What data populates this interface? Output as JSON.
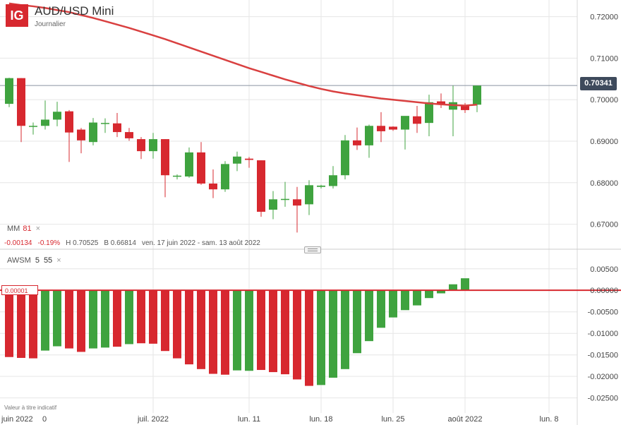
{
  "header": {
    "logo_text": "IG",
    "title": "AUD/USD Mini",
    "subtitle": "Journalier"
  },
  "price_pane": {
    "current_price_label": "0.70341",
    "indicator": {
      "name": "MM",
      "value": "81",
      "close": "×"
    },
    "stats": {
      "change": "-0.00134",
      "change_pct": "-0.19%",
      "high": "H 0.70525",
      "low": "B 0.66814",
      "range": "ven. 17 juin 2022 - sam. 13 août 2022"
    }
  },
  "osc_pane": {
    "indicator": {
      "name": "AWSM",
      "p1": "5",
      "p2": "55",
      "close": "×"
    },
    "current_value_label": "0.00001"
  },
  "disclaimer": "Valeur à titre indicatif",
  "colors": {
    "up": "#3fa33f",
    "down": "#d7282f",
    "ma": "#d94040",
    "grid": "#e6e6e6",
    "axis_text": "#444",
    "price_tag": "#3e4a5c"
  },
  "chart_data": [
    {
      "type": "candlestick",
      "title": "AUD/USD Mini",
      "ylim": [
        0.665,
        0.723
      ],
      "y_ticks": [
        "0.72000",
        "0.71000",
        "0.70000",
        "0.69000",
        "0.68000",
        "0.67000"
      ],
      "y_tick_values": [
        0.72,
        0.71,
        0.7,
        0.69,
        0.68,
        0.67
      ],
      "x_ticks": [
        "juin 2022",
        "0",
        "juil. 2022",
        "lun. 11",
        "lun. 18",
        "lun. 25",
        "août 2022",
        "lun. 8"
      ],
      "x_tick_index": [
        0,
        3,
        12,
        20,
        26,
        32,
        38,
        45
      ],
      "last_price": 0.70341,
      "candles": [
        {
          "o": 0.699,
          "h": 0.7053,
          "l": 0.6982,
          "c": 0.7052
        },
        {
          "o": 0.7052,
          "h": 0.7052,
          "l": 0.6898,
          "c": 0.6937
        },
        {
          "o": 0.6936,
          "h": 0.6945,
          "l": 0.6916,
          "c": 0.6937
        },
        {
          "o": 0.6937,
          "h": 0.6998,
          "l": 0.6928,
          "c": 0.6952
        },
        {
          "o": 0.6952,
          "h": 0.6995,
          "l": 0.6936,
          "c": 0.6971
        },
        {
          "o": 0.6972,
          "h": 0.6975,
          "l": 0.685,
          "c": 0.6921
        },
        {
          "o": 0.6928,
          "h": 0.6932,
          "l": 0.6871,
          "c": 0.6902
        },
        {
          "o": 0.6898,
          "h": 0.6956,
          "l": 0.689,
          "c": 0.6945
        },
        {
          "o": 0.6942,
          "h": 0.6955,
          "l": 0.692,
          "c": 0.6944
        },
        {
          "o": 0.6943,
          "h": 0.6968,
          "l": 0.691,
          "c": 0.6922
        },
        {
          "o": 0.6922,
          "h": 0.6932,
          "l": 0.6901,
          "c": 0.6907
        },
        {
          "o": 0.6905,
          "h": 0.691,
          "l": 0.6857,
          "c": 0.6876
        },
        {
          "o": 0.6876,
          "h": 0.692,
          "l": 0.6858,
          "c": 0.6905
        },
        {
          "o": 0.6905,
          "h": 0.6905,
          "l": 0.6765,
          "c": 0.6818
        },
        {
          "o": 0.6815,
          "h": 0.682,
          "l": 0.6808,
          "c": 0.6817
        },
        {
          "o": 0.6815,
          "h": 0.6885,
          "l": 0.6812,
          "c": 0.6873
        },
        {
          "o": 0.6873,
          "h": 0.6898,
          "l": 0.6795,
          "c": 0.6798
        },
        {
          "o": 0.6798,
          "h": 0.6832,
          "l": 0.6763,
          "c": 0.6784
        },
        {
          "o": 0.6784,
          "h": 0.6852,
          "l": 0.6778,
          "c": 0.6845
        },
        {
          "o": 0.6846,
          "h": 0.6875,
          "l": 0.6828,
          "c": 0.6863
        },
        {
          "o": 0.6858,
          "h": 0.6862,
          "l": 0.6836,
          "c": 0.6855
        },
        {
          "o": 0.6854,
          "h": 0.6854,
          "l": 0.6718,
          "c": 0.673
        },
        {
          "o": 0.6735,
          "h": 0.678,
          "l": 0.6712,
          "c": 0.676
        },
        {
          "o": 0.6759,
          "h": 0.6802,
          "l": 0.6742,
          "c": 0.6761
        },
        {
          "o": 0.676,
          "h": 0.679,
          "l": 0.668,
          "c": 0.6745
        },
        {
          "o": 0.6748,
          "h": 0.6806,
          "l": 0.6722,
          "c": 0.6794
        },
        {
          "o": 0.679,
          "h": 0.6795,
          "l": 0.6786,
          "c": 0.6793
        },
        {
          "o": 0.6792,
          "h": 0.684,
          "l": 0.6786,
          "c": 0.6818
        },
        {
          "o": 0.6818,
          "h": 0.6915,
          "l": 0.6808,
          "c": 0.6902
        },
        {
          "o": 0.6902,
          "h": 0.6933,
          "l": 0.6879,
          "c": 0.689
        },
        {
          "o": 0.689,
          "h": 0.694,
          "l": 0.686,
          "c": 0.6937
        },
        {
          "o": 0.6937,
          "h": 0.697,
          "l": 0.6898,
          "c": 0.6924
        },
        {
          "o": 0.6935,
          "h": 0.6936,
          "l": 0.6925,
          "c": 0.6928
        },
        {
          "o": 0.6928,
          "h": 0.696,
          "l": 0.688,
          "c": 0.6961
        },
        {
          "o": 0.696,
          "h": 0.6985,
          "l": 0.692,
          "c": 0.6942
        },
        {
          "o": 0.6944,
          "h": 0.7012,
          "l": 0.6912,
          "c": 0.6994
        },
        {
          "o": 0.6996,
          "h": 0.7015,
          "l": 0.698,
          "c": 0.699
        },
        {
          "o": 0.6976,
          "h": 0.7034,
          "l": 0.6912,
          "c": 0.6994
        },
        {
          "o": 0.6985,
          "h": 0.6992,
          "l": 0.6968,
          "c": 0.6975
        },
        {
          "o": 0.6988,
          "h": 0.7034,
          "l": 0.697,
          "c": 0.7034
        }
      ],
      "moving_average": {
        "name": "MM 81",
        "values": [
          0.7232,
          0.7228,
          0.7225,
          0.7221,
          0.7216,
          0.7211,
          0.7204,
          0.7197,
          0.7189,
          0.7181,
          0.7173,
          0.7164,
          0.7155,
          0.7146,
          0.7136,
          0.7126,
          0.7116,
          0.7106,
          0.7096,
          0.7086,
          0.7076,
          0.7067,
          0.7058,
          0.7049,
          0.7041,
          0.7033,
          0.7026,
          0.702,
          0.7015,
          0.7011,
          0.7007,
          0.7003,
          0.7,
          0.6997,
          0.6994,
          0.6991,
          0.6989,
          0.6987,
          0.6986,
          0.6988
        ]
      }
    },
    {
      "type": "bar",
      "title": "AWSM 5 55",
      "ylim": [
        -0.0285,
        0.0066
      ],
      "y_ticks": [
        "0.00500",
        "0.00000",
        "-0.00500",
        "-0.01000",
        "-0.01500",
        "-0.02000",
        "-0.02500"
      ],
      "y_tick_values": [
        0.005,
        0.0,
        -0.005,
        -0.01,
        -0.015,
        -0.02,
        -0.025
      ],
      "signal_value": 1e-05,
      "values": [
        -0.0155,
        -0.0157,
        -0.0158,
        -0.014,
        -0.013,
        -0.0135,
        -0.0143,
        -0.0135,
        -0.0133,
        -0.0131,
        -0.0125,
        -0.0123,
        -0.0124,
        -0.0141,
        -0.0158,
        -0.0172,
        -0.0183,
        -0.0194,
        -0.0196,
        -0.0186,
        -0.0187,
        -0.0185,
        -0.019,
        -0.0195,
        -0.0207,
        -0.0222,
        -0.022,
        -0.0203,
        -0.0183,
        -0.0146,
        -0.0118,
        -0.0087,
        -0.0063,
        -0.0046,
        -0.0035,
        -0.0018,
        -0.0007,
        0.0014,
        0.0028
      ],
      "colors_up": [
        false,
        false,
        false,
        true,
        true,
        false,
        false,
        true,
        true,
        false,
        true,
        false,
        false,
        false,
        false,
        false,
        false,
        false,
        false,
        true,
        true,
        false,
        false,
        false,
        false,
        false,
        true,
        true,
        true,
        true,
        true,
        true,
        true,
        true,
        true,
        true,
        true,
        true,
        true
      ]
    }
  ]
}
